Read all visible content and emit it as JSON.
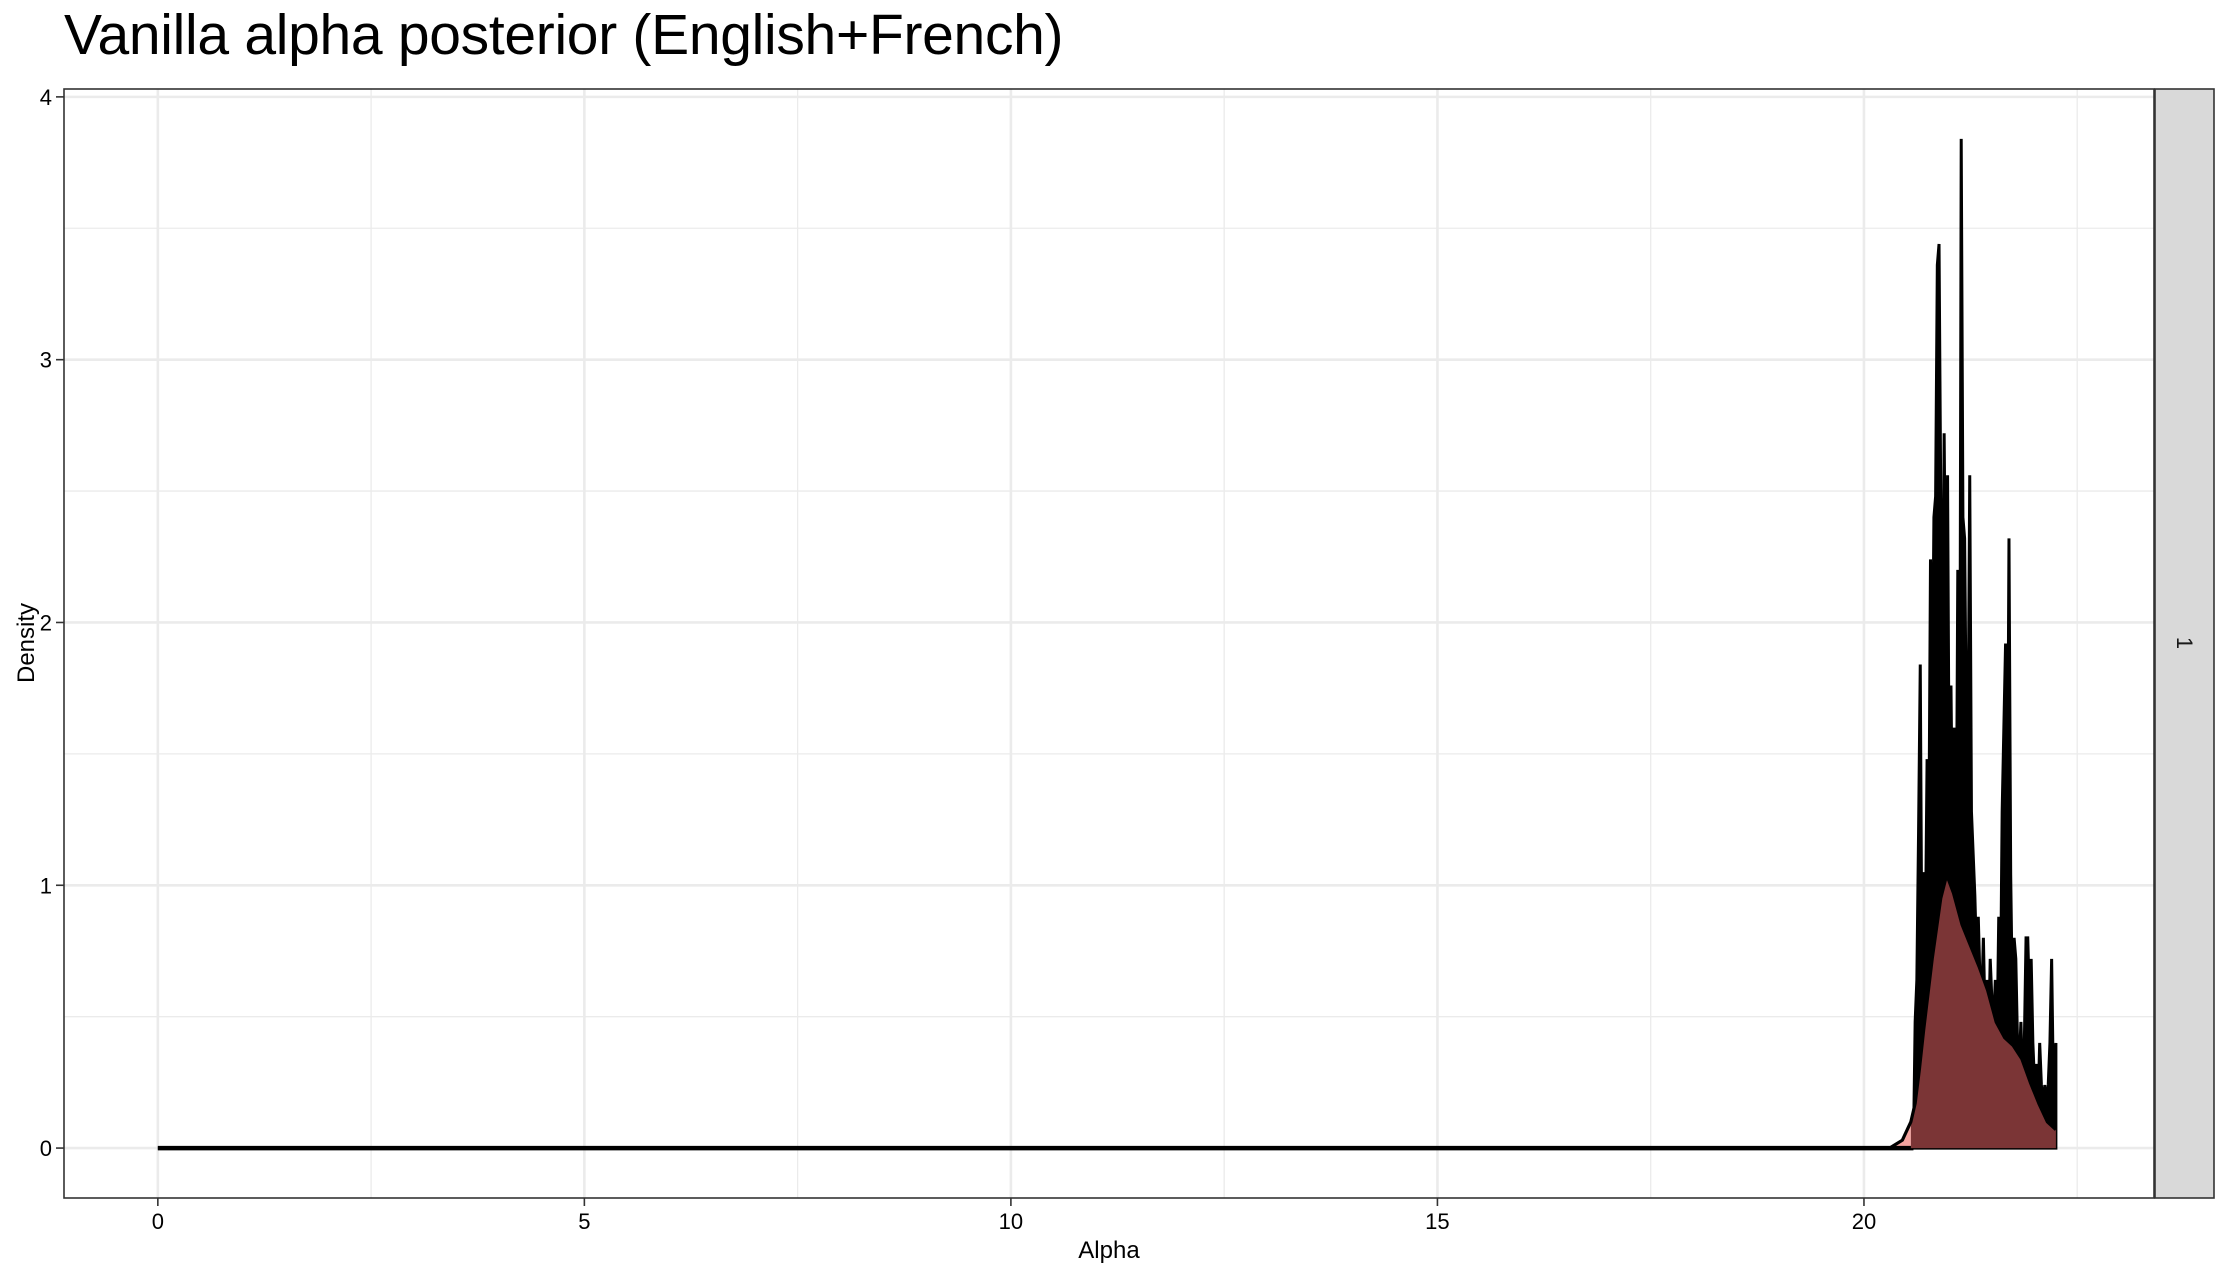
{
  "chart_data": {
    "type": "area",
    "title": "Vanilla alpha posterior (English+French)",
    "xlabel": "Alpha",
    "ylabel": "Density",
    "xlim": [
      -1.1,
      23.4
    ],
    "ylim": [
      -0.19,
      4.03
    ],
    "x_ticks": [
      0,
      5,
      10,
      15,
      20
    ],
    "y_ticks": [
      0,
      1,
      2,
      3,
      4
    ],
    "grid": true,
    "facet_label": "1",
    "colors": {
      "smooth_fill": "#7b3536",
      "smooth_fill_light": "#f4a4a0",
      "line": "#000000",
      "grid": "#ebebeb",
      "strip_bg": "#d9d9d9"
    },
    "series": [
      {
        "kind": "smooth_density",
        "x": [
          0,
          20.0,
          20.3,
          20.45,
          20.55,
          20.6,
          20.65,
          20.7,
          20.8,
          20.9,
          20.97,
          21.05,
          21.15,
          21.25,
          21.35,
          21.45,
          21.55,
          21.65,
          21.75,
          21.85,
          21.95,
          22.05,
          22.15,
          22.25
        ],
        "y": [
          0,
          0,
          0.0,
          0.03,
          0.1,
          0.17,
          0.3,
          0.45,
          0.72,
          0.95,
          1.04,
          0.97,
          0.85,
          0.77,
          0.69,
          0.6,
          0.48,
          0.42,
          0.39,
          0.34,
          0.25,
          0.17,
          0.1,
          0.07
        ]
      },
      {
        "kind": "raw_density",
        "x": [
          0,
          20.58,
          20.6,
          20.62,
          20.64,
          20.66,
          20.68,
          20.7,
          20.72,
          20.74,
          20.76,
          20.78,
          20.8,
          20.82,
          20.84,
          20.86,
          20.88,
          20.9,
          20.92,
          20.94,
          20.96,
          20.98,
          21.0,
          21.02,
          21.04,
          21.06,
          21.08,
          21.1,
          21.12,
          21.14,
          21.16,
          21.18,
          21.2,
          21.22,
          21.24,
          21.26,
          21.28,
          21.3,
          21.32,
          21.34,
          21.36,
          21.38,
          21.4,
          21.42,
          21.44,
          21.46,
          21.48,
          21.5,
          21.52,
          21.54,
          21.56,
          21.58,
          21.6,
          21.62,
          21.64,
          21.66,
          21.68,
          21.7,
          21.72,
          21.74,
          21.76,
          21.78,
          21.8,
          21.82,
          21.84,
          21.86,
          21.88,
          21.9,
          21.92,
          21.94,
          21.96,
          21.98,
          22.0,
          22.02,
          22.04,
          22.06,
          22.08,
          22.1,
          22.12,
          22.14,
          22.16,
          22.18,
          22.2,
          22.22,
          22.25
        ],
        "y": [
          0,
          0.0,
          0.48,
          0.64,
          1.2,
          1.84,
          0.62,
          1.05,
          0.8,
          1.48,
          1.12,
          2.24,
          1.6,
          2.4,
          2.48,
          3.36,
          3.44,
          2.48,
          1.6,
          2.72,
          1.92,
          2.56,
          1.28,
          1.76,
          1.12,
          1.6,
          0.96,
          2.2,
          0.88,
          3.84,
          2.4,
          2.32,
          1.6,
          1.52,
          2.56,
          1.28,
          1.12,
          0.96,
          0.72,
          0.88,
          0.64,
          0.56,
          0.8,
          0.48,
          0.64,
          0.4,
          0.72,
          0.56,
          0.48,
          0.64,
          0.4,
          0.88,
          0.56,
          1.28,
          1.6,
          1.92,
          1.04,
          2.32,
          1.04,
          0.56,
          0.8,
          0.72,
          0.4,
          0.32,
          0.48,
          0.24,
          0.4,
          0.8,
          0.8,
          0.56,
          0.72,
          0.4,
          0.24,
          0.32,
          0.16,
          0.4,
          0.24,
          0.16,
          0.24,
          0.16,
          0.24,
          0.4,
          0.72,
          0.24,
          0.4
        ]
      }
    ]
  }
}
